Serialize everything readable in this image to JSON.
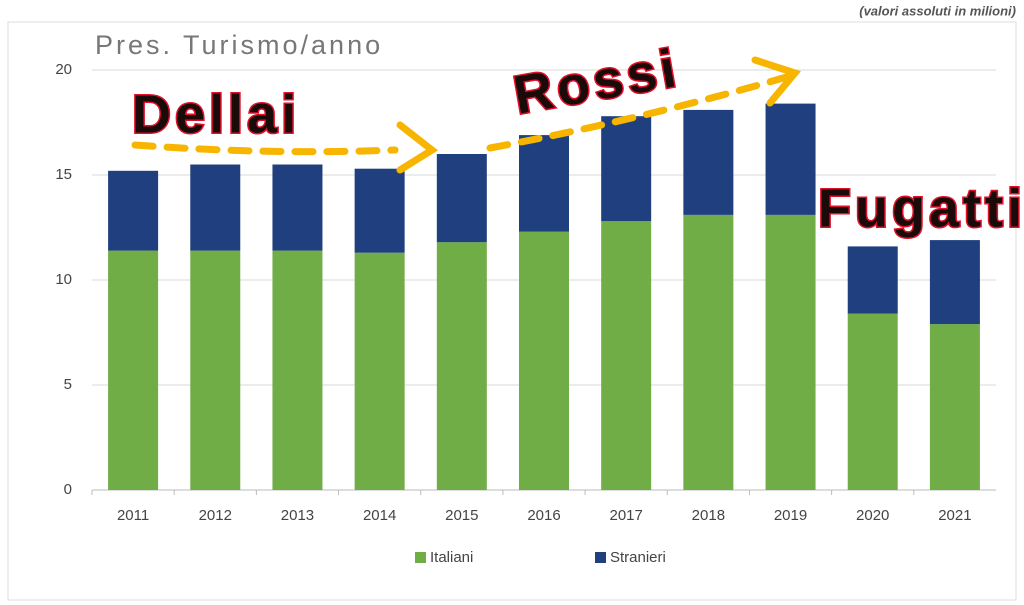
{
  "chart_data": {
    "type": "stacked_bar",
    "title": "Pres. Turismo/anno",
    "subtitle": "(valori assoluti in milioni)",
    "categories": [
      "2011",
      "2012",
      "2013",
      "2014",
      "2015",
      "2016",
      "2017",
      "2018",
      "2019",
      "2020",
      "2021"
    ],
    "series": [
      {
        "name": "Italiani",
        "color": "#70ad47",
        "values": [
          11.4,
          11.4,
          11.4,
          11.3,
          11.8,
          12.3,
          12.8,
          13.1,
          13.1,
          8.4,
          7.9
        ]
      },
      {
        "name": "Stranieri",
        "color": "#203f7f",
        "values": [
          3.8,
          4.1,
          4.1,
          4.0,
          4.2,
          4.6,
          5.0,
          5.0,
          5.3,
          3.2,
          4.0
        ]
      }
    ],
    "ylim": [
      0,
      20
    ],
    "yticks": [
      0,
      5,
      10,
      15,
      20
    ],
    "grid": true,
    "legend": "bottom",
    "annotations": [
      "Dellai",
      "Rossi",
      "Fugatti"
    ]
  }
}
